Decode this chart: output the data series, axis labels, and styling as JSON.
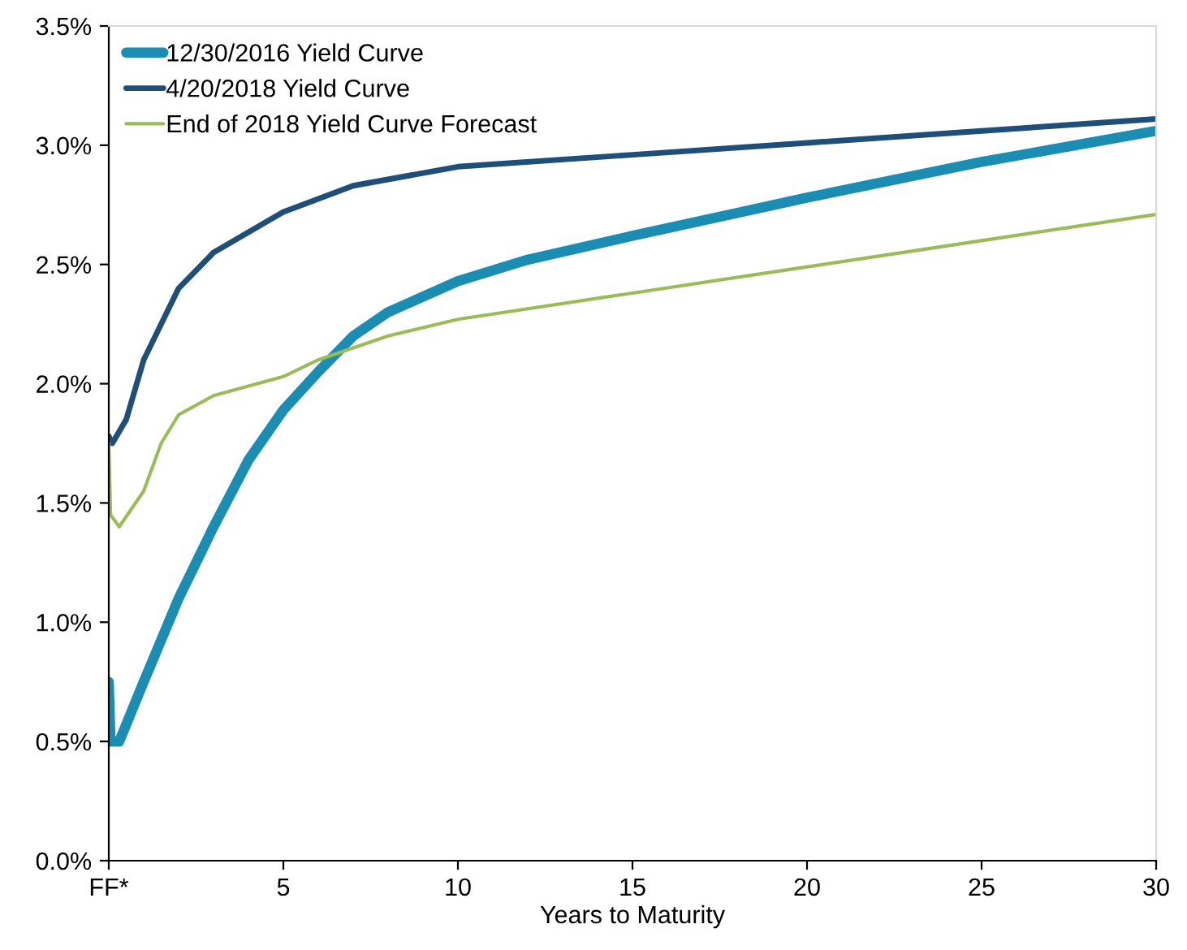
{
  "chart_data": {
    "type": "line",
    "xlabel": "Years to Maturity",
    "legend": "top left",
    "grid": false,
    "line_style": "solid",
    "marker": "none",
    "xlim": [
      0,
      30
    ],
    "xticks": [
      {
        "value": 0,
        "label": "FF*"
      },
      5,
      10,
      15,
      20,
      25,
      30
    ],
    "ylim": [
      0,
      3.5
    ],
    "yticks": [
      {
        "value": 0,
        "label": "0.0%"
      },
      {
        "value": 0.5,
        "label": "0.5%"
      },
      {
        "value": 1,
        "label": "1.0%"
      },
      {
        "value": 1.5,
        "label": "1.5%"
      },
      {
        "value": 2,
        "label": "2.0%"
      },
      {
        "value": 2.5,
        "label": "2.5%"
      },
      {
        "value": 3,
        "label": "3.0%"
      },
      {
        "value": 3.5,
        "label": "3.5%"
      }
    ],
    "series": [
      {
        "name": "12/30/2016 Yield Curve",
        "color": "#1b8db3",
        "x": [
          0,
          0.05,
          0.3,
          1,
          2,
          3,
          4,
          5,
          6,
          7,
          8,
          10,
          12,
          15,
          20,
          25,
          30
        ],
        "values": [
          0.75,
          0.5,
          0.5,
          0.75,
          1.1,
          1.4,
          1.68,
          1.89,
          2.05,
          2.2,
          2.3,
          2.43,
          2.52,
          2.62,
          2.78,
          2.93,
          3.06
        ]
      },
      {
        "name": "4/20/2018 Yield Curve",
        "color": "#1f4e79",
        "x": [
          0,
          0.1,
          0.5,
          1,
          2,
          3,
          5,
          7,
          10,
          15,
          20,
          25,
          30
        ],
        "values": [
          1.78,
          1.75,
          1.85,
          2.1,
          2.4,
          2.55,
          2.72,
          2.83,
          2.91,
          2.96,
          3.01,
          3.06,
          3.11
        ]
      },
      {
        "name": "End of 2018 Yield Curve Forecast",
        "color": "#9bbb59",
        "x": [
          0,
          0.05,
          0.3,
          1,
          1.5,
          2,
          3,
          5,
          6,
          8,
          10,
          15,
          20,
          25,
          30
        ],
        "values": [
          1.75,
          1.45,
          1.4,
          1.55,
          1.75,
          1.87,
          1.95,
          2.03,
          2.1,
          2.2,
          2.27,
          2.38,
          2.49,
          2.6,
          2.71
        ]
      }
    ]
  }
}
